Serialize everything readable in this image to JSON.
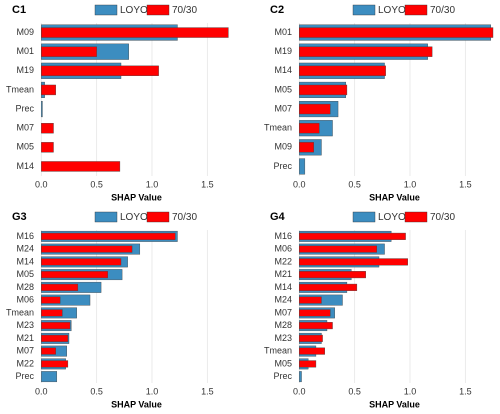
{
  "chart_data": [
    {
      "type": "barh",
      "title": "C1",
      "xlabel": "SHAP Value",
      "categories": [
        "M09",
        "M01",
        "M19",
        "Tmean",
        "Prec",
        "M07",
        "M05",
        "M14"
      ],
      "series": [
        {
          "name": "LOYO",
          "color": "#3c8dc0",
          "values": [
            1.23,
            0.79,
            0.72,
            0.03,
            0.01,
            0,
            0,
            0
          ]
        },
        {
          "name": "70/30",
          "color": "#ff0000",
          "values": [
            1.69,
            0.5,
            1.06,
            0.13,
            0,
            0.11,
            0.11,
            0.71
          ]
        }
      ],
      "xlim": [
        -0.03,
        1.75
      ],
      "xticks": [
        {
          "value": 0,
          "label": "0.0"
        },
        {
          "value": 0.5,
          "label": "0.5"
        },
        {
          "value": 1,
          "label": "1.0"
        },
        {
          "value": 1.5,
          "label": "1.5"
        }
      ],
      "grid": true
    },
    {
      "type": "barh",
      "title": "C2",
      "xlabel": "SHAP Value",
      "categories": [
        "M01",
        "M19",
        "M14",
        "M05",
        "M07",
        "Tmean",
        "M09",
        "Prec"
      ],
      "series": [
        {
          "name": "LOYO",
          "color": "#3c8dc0",
          "values": [
            1.73,
            1.16,
            0.77,
            0.42,
            0.35,
            0.3,
            0.2,
            0.05
          ]
        },
        {
          "name": "70/30",
          "color": "#ff0000",
          "values": [
            1.75,
            1.2,
            0.78,
            0.43,
            0.28,
            0.18,
            0.13,
            0
          ]
        }
      ],
      "xlim": [
        -0.03,
        1.75
      ],
      "xticks": [
        {
          "value": 0,
          "label": "0.0"
        },
        {
          "value": 0.5,
          "label": "0.5"
        },
        {
          "value": 1,
          "label": "1.0"
        },
        {
          "value": 1.5,
          "label": "1.5"
        }
      ],
      "grid": true
    },
    {
      "type": "barh",
      "title": "G3",
      "xlabel": "SHAP Value",
      "categories": [
        "M16",
        "M24",
        "M14",
        "M05",
        "M28",
        "M06",
        "Tmean",
        "M23",
        "M21",
        "M07",
        "M22",
        "Prec"
      ],
      "series": [
        {
          "name": "LOYO",
          "color": "#3c8dc0",
          "values": [
            1.23,
            0.89,
            0.78,
            0.73,
            0.54,
            0.44,
            0.32,
            0.27,
            0.25,
            0.23,
            0.22,
            0.14
          ]
        },
        {
          "name": "70/30",
          "color": "#ff0000",
          "values": [
            1.21,
            0.82,
            0.72,
            0.6,
            0.33,
            0.17,
            0.19,
            0.26,
            0.24,
            0.13,
            0.24,
            0
          ]
        }
      ],
      "xlim": [
        -0.03,
        1.75
      ],
      "xticks": [
        {
          "value": 0,
          "label": "0.0"
        },
        {
          "value": 0.5,
          "label": "0.5"
        },
        {
          "value": 1,
          "label": "1.0"
        },
        {
          "value": 1.5,
          "label": "1.5"
        }
      ],
      "grid": true
    },
    {
      "type": "barh",
      "title": "G4",
      "xlabel": "SHAP Value",
      "categories": [
        "M16",
        "M06",
        "M22",
        "M21",
        "M14",
        "M24",
        "M07",
        "M28",
        "M23",
        "Tmean",
        "M05",
        "Prec"
      ],
      "series": [
        {
          "name": "LOYO",
          "color": "#3c8dc0",
          "values": [
            0.83,
            0.77,
            0.72,
            0.47,
            0.43,
            0.39,
            0.32,
            0.25,
            0.2,
            0.15,
            0.08,
            0.02
          ]
        },
        {
          "name": "70/30",
          "color": "#ff0000",
          "values": [
            0.96,
            0.7,
            0.98,
            0.6,
            0.52,
            0.2,
            0.28,
            0.3,
            0.21,
            0.23,
            0.15,
            0
          ]
        }
      ],
      "xlim": [
        -0.03,
        1.75
      ],
      "xticks": [
        {
          "value": 0,
          "label": "0.0"
        },
        {
          "value": 0.5,
          "label": "0.5"
        },
        {
          "value": 1,
          "label": "1.0"
        },
        {
          "value": 1.5,
          "label": "1.5"
        }
      ],
      "grid": true
    }
  ]
}
